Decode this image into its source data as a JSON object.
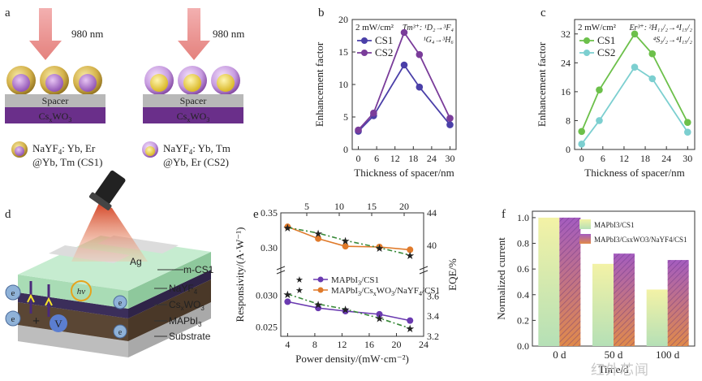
{
  "panels": {
    "a": {
      "letter": "a",
      "laser_left": "980 nm",
      "laser_right": "980 nm",
      "spacer_label": "Spacer",
      "substrate_label_main": "Cs",
      "substrate_label_sub": "x",
      "substrate_label_end": "WO",
      "substrate_label_sub2": "3",
      "legend1_line1_a": "NaYF",
      "legend1_line1_sub": "4",
      "legend1_line1_b": ": Yb, Er",
      "legend1_line2": "@Yb, Tm (CS1)",
      "legend2_line1_a": "NaYF",
      "legend2_line1_sub": "4",
      "legend2_line1_b": ": Yb, Tm",
      "legend2_line2": "@Yb, Er (CS2)",
      "colors": {
        "shell_gold": "#d4b24a",
        "core_purple": "#b88ad0",
        "spacer": "#b0b0b0",
        "cswo": "#6a2f8a"
      }
    },
    "d": {
      "letter": "d",
      "labels": {
        "ag": "Ag",
        "mcs1": "m-CS1",
        "nayf4": "NaYF4",
        "cswo3": "CsxWO3",
        "mapbi3": "MAPbI3",
        "substrate": "Substrate",
        "hv": "hν",
        "electron": "e",
        "electron_sup": "-",
        "voltage": "V",
        "plus": "+"
      },
      "colors": {
        "green": "#a9dcb5",
        "cswo": "#3b2e5a",
        "mapbi": "#5d4a3a",
        "substrate": "#d8d8d8",
        "beam": "#e05a3a"
      }
    }
  },
  "chart_data": [
    {
      "panel": "b",
      "type": "line",
      "title": "2 mW/cm²",
      "annotation1": "Tm³⁺: ¹D₂→³F₄",
      "annotation2": "¹G₄→³H₆",
      "xlabel": "Thickness of spacer/nm",
      "ylabel": "Enhancement factor",
      "xlim": [
        -2,
        32
      ],
      "ylim": [
        0,
        20
      ],
      "xticks": [
        0,
        6,
        12,
        18,
        24,
        30
      ],
      "yticks": [
        0,
        5,
        10,
        15,
        20
      ],
      "x": [
        0,
        5,
        15,
        20,
        30
      ],
      "series": [
        {
          "name": "CS1",
          "color": "#4a3fa8",
          "values": [
            2.8,
            5.2,
            13.0,
            9.6,
            3.8
          ]
        },
        {
          "name": "CS2",
          "color": "#7a3c9a",
          "values": [
            3.0,
            5.6,
            18.0,
            14.6,
            4.8
          ]
        }
      ]
    },
    {
      "panel": "c",
      "type": "line",
      "title": "2 mW/cm²",
      "annotation1": "Er³⁺: ²H₁₁/₂→⁴I₁₅/₂",
      "annotation2": "⁴S₃/₂→⁴I₁₅/₂",
      "xlabel": "Thickness of spacer/nm",
      "ylabel": "Enhancement factor",
      "xlim": [
        -2,
        32
      ],
      "ylim": [
        0,
        36
      ],
      "xticks": [
        0,
        6,
        12,
        18,
        24,
        30
      ],
      "yticks": [
        0,
        8,
        16,
        24,
        32
      ],
      "x": [
        0,
        5,
        15,
        20,
        30
      ],
      "series": [
        {
          "name": "CS1",
          "color": "#6cc04a",
          "values": [
            5.0,
            16.5,
            32.0,
            26.5,
            7.5
          ]
        },
        {
          "name": "CS2",
          "color": "#7ccfd0",
          "values": [
            1.5,
            8.0,
            22.8,
            19.6,
            4.8
          ]
        }
      ]
    },
    {
      "panel": "e",
      "type": "line",
      "xlabel": "Power density/(mW·cm⁻²)",
      "ylabel_left": "Responsivity/(A·W⁻¹)",
      "ylabel_right": "EQE/%",
      "xlim": [
        3,
        24
      ],
      "xticks": [
        4,
        8,
        12,
        16,
        20,
        24
      ],
      "top_xticks": [
        5,
        10,
        15,
        20
      ],
      "yticks_left_upper": [
        0.3,
        0.35
      ],
      "yticks_left_lower": [
        0.025,
        0.03
      ],
      "yticks_right_upper": [
        40,
        44
      ],
      "yticks_right_lower": [
        3.2,
        3.4,
        3.6
      ],
      "x": [
        4,
        8.5,
        12.5,
        17.5,
        22
      ],
      "series": [
        {
          "name": "MAPbI3/CS1",
          "axis": "responsivity",
          "color": "#6a3ab0",
          "values": [
            0.029,
            0.028,
            0.0275,
            0.027,
            0.026
          ]
        },
        {
          "name": "MAPbI3/CsxWO3/NaYF4/CS1",
          "axis": "responsivity",
          "color": "#e07a2a",
          "values": [
            0.33,
            0.313,
            0.302,
            0.301,
            0.297
          ]
        },
        {
          "name": "MAPbI3/CS1 EQE",
          "axis": "eqe",
          "color": "#3a8a3a",
          "values": [
            3.62,
            3.52,
            3.47,
            3.38,
            3.28
          ]
        },
        {
          "name": "MAPbI3/CsxWO3/NaYF4/CS1 EQE",
          "axis": "eqe",
          "color": "#3a8a3a",
          "values": [
            42.2,
            41.5,
            40.6,
            39.7,
            38.8
          ]
        }
      ],
      "legend": [
        {
          "label_a": "MAPbI",
          "label_sub": "3",
          "label_b": "/CS1",
          "color": "#6a3ab0"
        },
        {
          "label_a": "MAPbI",
          "label_sub": "3",
          "label_b": "/Cs",
          "label_sub2": "x",
          "label_c": "WO",
          "label_sub3": "3",
          "label_d": "/NaYF",
          "label_sub4": "4",
          "label_e": "/CS1",
          "color": "#e07a2a"
        }
      ]
    },
    {
      "panel": "f",
      "type": "bar",
      "xlabel": "Time/d",
      "ylabel": "Normalized current",
      "ylim": [
        0,
        1.05
      ],
      "yticks": [
        0,
        0.2,
        0.4,
        0.6,
        0.8,
        1.0
      ],
      "categories": [
        "0 d",
        "50 d",
        "100 d"
      ],
      "series": [
        {
          "name": "MAPbI3/CS1",
          "values": [
            1.0,
            0.64,
            0.44
          ]
        },
        {
          "name": "MAPbI3/CsxWO3/NaYF4/CS1",
          "values": [
            1.0,
            0.72,
            0.67
          ]
        }
      ],
      "legend_labels": [
        "MAPbI3/CS1",
        "MAPbI3/CsxWO3/NaYF4/CS1"
      ]
    }
  ],
  "watermark": "红外芯闻"
}
